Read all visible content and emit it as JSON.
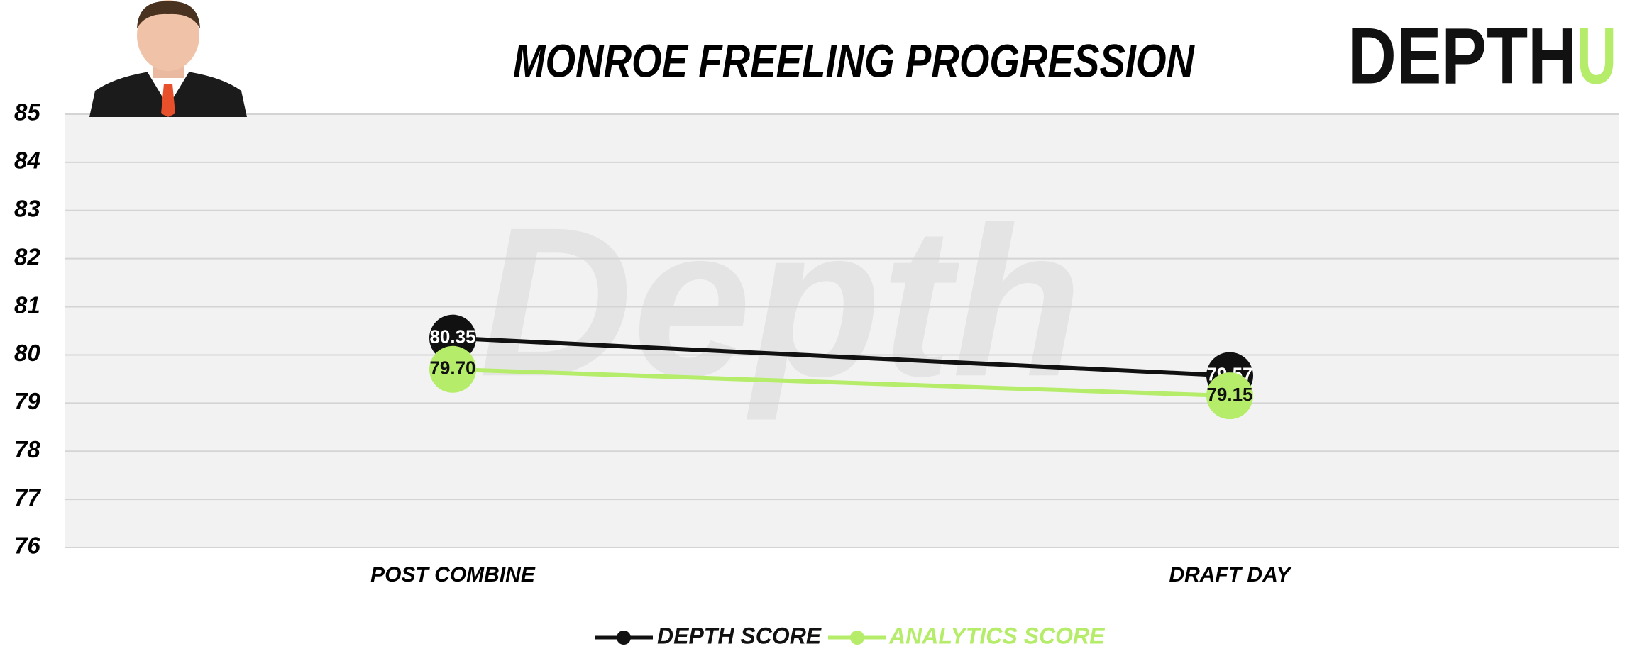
{
  "chart_data": {
    "type": "line",
    "title": "MONROE FREELING PROGRESSION",
    "logo": [
      "DEPTH",
      "U"
    ],
    "watermark": "Depth",
    "categories": [
      "POST COMBINE",
      "DRAFT DAY"
    ],
    "series": [
      {
        "name": "DEPTH SCORE",
        "color": "#111111",
        "values": [
          80.35,
          79.57
        ],
        "value_labels": [
          "80.35",
          "79.57"
        ]
      },
      {
        "name": "ANALYTICS SCORE",
        "color": "#b5ec6a",
        "values": [
          79.7,
          79.15
        ],
        "value_labels": [
          "79.70",
          "79.15"
        ]
      }
    ],
    "ylim": [
      76,
      85
    ],
    "yticks": [
      76,
      77,
      78,
      79,
      80,
      81,
      82,
      83,
      84,
      85
    ],
    "grid": true,
    "legend": "bottom"
  }
}
